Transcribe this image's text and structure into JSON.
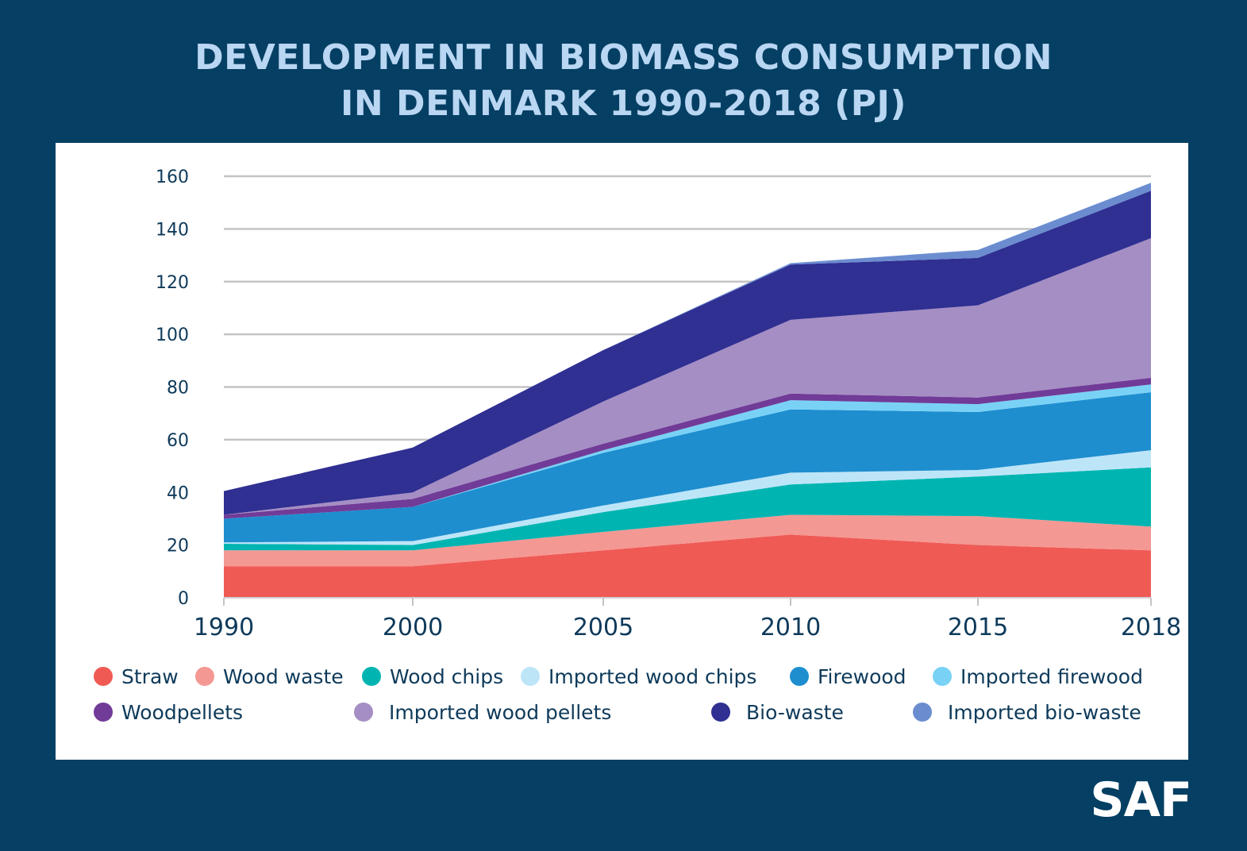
{
  "title_line1": "DEVELOPMENT IN BIOMASS CONSUMPTION",
  "title_line2": "IN DENMARK  1990-2018 (PJ)",
  "logo": "SAF",
  "chart_data": {
    "type": "area",
    "stacked": true,
    "title": "DEVELOPMENT IN BIOMASS CONSUMPTION IN DENMARK 1990-2018 (PJ)",
    "categories": [
      "1990",
      "2000",
      "2005",
      "2010",
      "2015",
      "2018"
    ],
    "ylim": [
      0,
      160
    ],
    "yticks": [
      0,
      20,
      40,
      60,
      80,
      100,
      120,
      140,
      160
    ],
    "grid": true,
    "legend_position": "bottom",
    "series": [
      {
        "name": "Straw",
        "color": "#f05a55",
        "values": [
          12,
          12,
          18,
          24,
          20,
          18
        ]
      },
      {
        "name": "Wood waste",
        "color": "#f49893",
        "values": [
          6,
          6,
          7,
          7.5,
          11,
          9
        ]
      },
      {
        "name": "Wood chips",
        "color": "#00b5b1",
        "values": [
          2.5,
          2,
          7.5,
          11.5,
          15,
          22.5
        ]
      },
      {
        "name": "Imported wood chips",
        "color": "#bde5f8",
        "values": [
          0.5,
          1.5,
          2.5,
          4.5,
          2.5,
          6.5
        ]
      },
      {
        "name": "Firewood",
        "color": "#1e8ecf",
        "values": [
          9,
          13,
          20,
          24,
          22,
          22
        ]
      },
      {
        "name": "Imported firewood",
        "color": "#79d2f6",
        "values": [
          0,
          0,
          1,
          3.5,
          3,
          3
        ]
      },
      {
        "name": "Woodpellets",
        "color": "#713b98",
        "values": [
          1.5,
          3,
          2.5,
          2.5,
          2.5,
          2.5
        ]
      },
      {
        "name": "Imported wood pellets",
        "color": "#a58ec4",
        "values": [
          0,
          2.5,
          16,
          28,
          35,
          53
        ]
      },
      {
        "name": "Bio-waste",
        "color": "#302f92",
        "values": [
          9,
          17,
          19.5,
          21,
          18,
          18
        ]
      },
      {
        "name": "Imported bio-waste",
        "color": "#6b8dd0",
        "values": [
          0,
          0,
          0,
          0.5,
          3,
          3
        ]
      }
    ]
  }
}
